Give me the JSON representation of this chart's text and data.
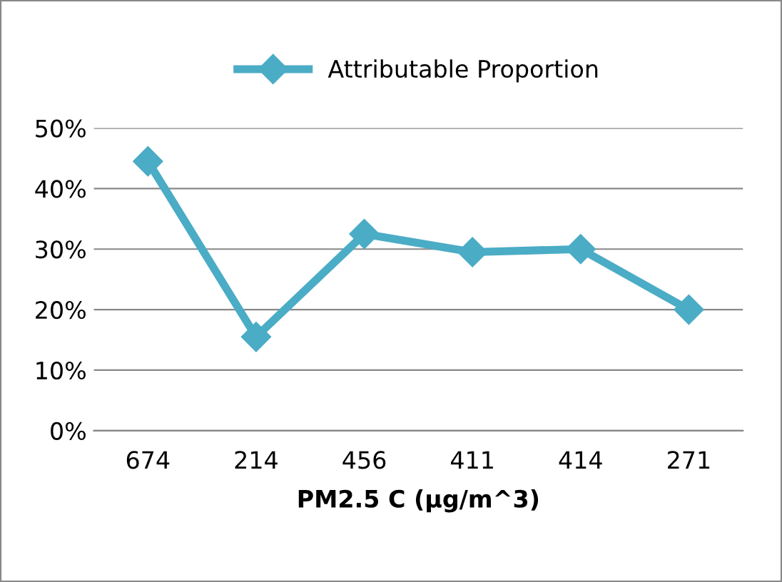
{
  "chart_data": {
    "type": "line",
    "xlabel": "PM2.5 C (µg/m^3)",
    "categories": [
      "674",
      "214",
      "456",
      "411",
      "414",
      "271"
    ],
    "series": [
      {
        "name": "Attributable Proportion",
        "color": "#4bacc6",
        "values": [
          44.5,
          15.5,
          32.5,
          29.5,
          30,
          20
        ]
      }
    ],
    "ylim": [
      0,
      50
    ],
    "yticks": [
      {
        "value": 0,
        "label": "0%"
      },
      {
        "value": 10,
        "label": "10%"
      },
      {
        "value": 20,
        "label": "20%"
      },
      {
        "value": 30,
        "label": "30%"
      },
      {
        "value": 40,
        "label": "40%"
      },
      {
        "value": 50,
        "label": "50%"
      }
    ],
    "grid": "y",
    "legend": "top",
    "marker": "diamond",
    "line_style": "solid"
  }
}
